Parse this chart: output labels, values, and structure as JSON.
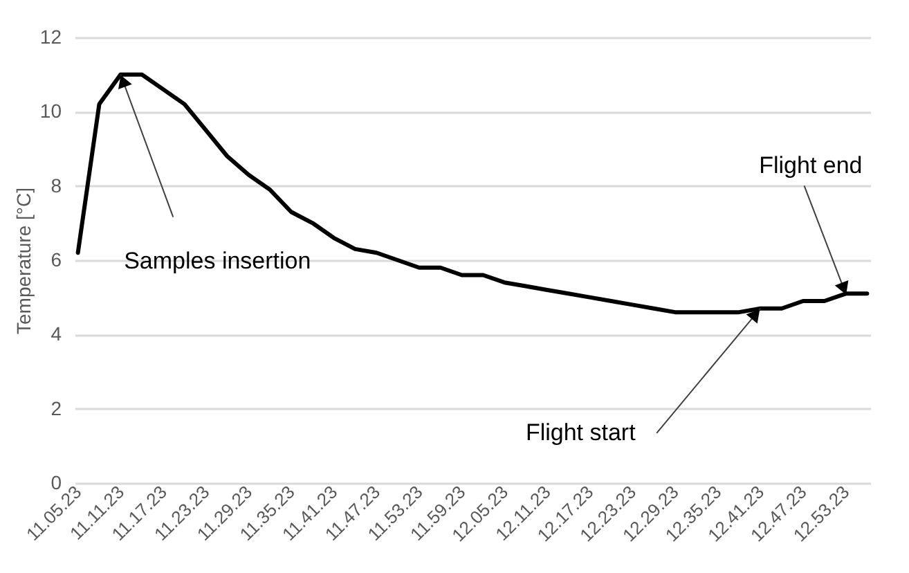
{
  "chart_data": {
    "type": "line",
    "ylabel": "Temperature [°C]",
    "categories": [
      "11.05.23",
      null,
      "11.11.23",
      null,
      "11.17.23",
      null,
      "11.23.23",
      null,
      "11.29.23",
      null,
      "11.35.23",
      null,
      "11.41.23",
      null,
      "11.47.23",
      null,
      "11.53.23",
      null,
      "11.59.23",
      null,
      "12.05.23",
      null,
      "12.11.23",
      null,
      "12.17.23",
      null,
      "12.23.23",
      null,
      "12.29.23",
      null,
      "12.35.23",
      null,
      "12.41.23",
      null,
      "12.47.23",
      null,
      "12.53.23",
      null
    ],
    "series": [
      {
        "color": "#000000",
        "values": [
          6.2,
          10.2,
          11.0,
          11.0,
          10.6,
          10.2,
          9.5,
          8.8,
          8.3,
          7.9,
          7.3,
          7.0,
          6.6,
          6.3,
          6.2,
          6.0,
          5.8,
          5.8,
          5.6,
          5.6,
          5.4,
          5.3,
          5.2,
          5.1,
          5.0,
          4.9,
          4.8,
          4.7,
          4.6,
          4.6,
          4.6,
          4.6,
          4.7,
          4.7,
          4.9,
          4.9,
          5.1,
          5.1
        ]
      }
    ],
    "ylim": [
      0,
      12
    ],
    "yticks": [
      0,
      2,
      4,
      6,
      8,
      10,
      12
    ],
    "grid": "y",
    "marker": "none",
    "line_style": "solid",
    "annotations": [
      {
        "text": "Samples insertion",
        "x": "11.11.23",
        "y": 11.0
      },
      {
        "text": "Flight start",
        "x": "12.41.23",
        "y": 4.7
      },
      {
        "text": "Flight end",
        "x": "12.53.23",
        "y": 5.1
      }
    ]
  }
}
